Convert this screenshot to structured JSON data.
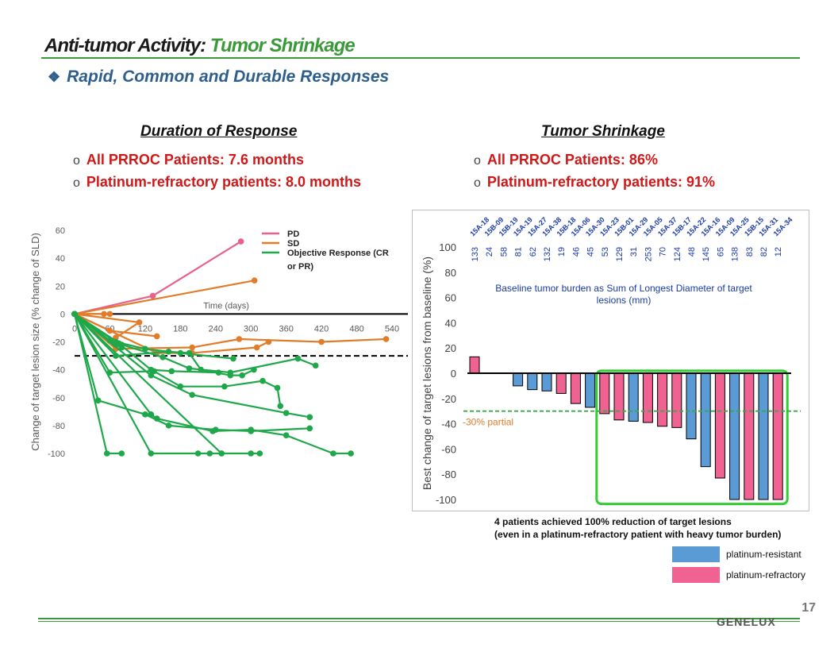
{
  "title": {
    "main": "Anti-tumor Activity: ",
    "accent": "Tumor Shrinkage"
  },
  "subtitle": "Rapid, Common and Durable Responses",
  "bullet_glyph": "❖",
  "circle_bullet": "o",
  "left_section": {
    "heading": "Duration of Response",
    "bullets": [
      "All PRROC Patients: 7.6 months",
      "Platinum-refractory patients: 8.0 months"
    ]
  },
  "right_section": {
    "heading": "Tumor Shrinkage",
    "bullets": [
      "All PRROC Patients: 86%",
      "Platinum-refractory patients: 91%"
    ]
  },
  "footnote": [
    "4 patients achieved 100% reduction of target lesions",
    "(even in a platinum-refractory patient with heavy tumor burden)"
  ],
  "page_number": "17",
  "logo_text": "GENELUX",
  "colors": {
    "pd": "#e8608e",
    "sd": "#e07c2a",
    "response": "#1ea84a",
    "resistant": "#5b9bd5",
    "refractory": "#f06292",
    "green_box": "#33cc33",
    "accent_green": "#3a9a3a",
    "title_blue": "#2e5e8c",
    "bullet_red": "#d01818"
  },
  "chart_data": [
    {
      "type": "line",
      "title": "",
      "xlabel": "Time (days)",
      "ylabel": "Change of target lesion size (% change of SLD)",
      "xlim": [
        0,
        540
      ],
      "ylim": [
        -100,
        60
      ],
      "xticks": [
        0,
        60,
        120,
        180,
        240,
        300,
        360,
        420,
        480,
        540
      ],
      "yticks": [
        60,
        40,
        20,
        0,
        -20,
        -40,
        -60,
        -80,
        -100
      ],
      "reference_line": -30,
      "legend": [
        "PD",
        "SD",
        "Objective Response (CR or PR)"
      ],
      "legend_position": "top-right",
      "series": [
        {
          "group": "PD",
          "points": [
            [
              0,
              0
            ],
            [
              133,
              13
            ],
            [
              283,
              52
            ]
          ]
        },
        {
          "group": "SD",
          "points": [
            [
              0,
              0
            ],
            [
              306,
              24
            ]
          ]
        },
        {
          "group": "SD",
          "points": [
            [
              0,
              0
            ],
            [
              110,
              -6
            ],
            [
              70,
              -17
            ]
          ]
        },
        {
          "group": "SD",
          "points": [
            [
              0,
              0
            ],
            [
              50,
              0
            ],
            [
              60,
              0
            ]
          ]
        },
        {
          "group": "SD",
          "points": [
            [
              0,
              0
            ],
            [
              60,
              -12
            ],
            [
              140,
              -16
            ]
          ]
        },
        {
          "group": "SD",
          "points": [
            [
              0,
              0
            ],
            [
              70,
              -25
            ],
            [
              200,
              -24
            ],
            [
              280,
              -18
            ],
            [
              420,
              -20
            ],
            [
              530,
              -18
            ]
          ]
        },
        {
          "group": "SD",
          "points": [
            [
              0,
              0
            ],
            [
              140,
              -28
            ],
            [
              200,
              -28
            ],
            [
              310,
              -24
            ],
            [
              330,
              -20
            ]
          ]
        },
        {
          "group": "Response",
          "points": [
            [
              0,
              0
            ],
            [
              60,
              -19
            ],
            [
              70,
              -22
            ],
            [
              80,
              -24
            ]
          ]
        },
        {
          "group": "Response",
          "points": [
            [
              0,
              0
            ],
            [
              70,
              -20
            ],
            [
              120,
              -25
            ],
            [
              180,
              -28
            ],
            [
              270,
              -32
            ]
          ]
        },
        {
          "group": "Response",
          "points": [
            [
              0,
              0
            ],
            [
              75,
              -21
            ],
            [
              130,
              -40
            ],
            [
              165,
              -41
            ],
            [
              245,
              -42
            ]
          ]
        },
        {
          "group": "Response",
          "points": [
            [
              0,
              0
            ],
            [
              70,
              -30
            ],
            [
              160,
              -27
            ],
            [
              195,
              -28
            ],
            [
              215,
              -40
            ],
            [
              265,
              -44
            ],
            [
              285,
              -44
            ],
            [
              305,
              -40
            ]
          ]
        },
        {
          "group": "Response",
          "points": [
            [
              0,
              0
            ],
            [
              60,
              -42
            ],
            [
              135,
              -41
            ],
            [
              180,
              -52
            ],
            [
              255,
              -52
            ],
            [
              320,
              -48
            ],
            [
              345,
              -53
            ],
            [
              350,
              -66
            ]
          ]
        },
        {
          "group": "Response",
          "points": [
            [
              0,
              0
            ],
            [
              80,
              -22
            ],
            [
              150,
              -31
            ],
            [
              195,
              -39
            ],
            [
              265,
              -42
            ],
            [
              380,
              -32
            ],
            [
              410,
              -37
            ]
          ]
        },
        {
          "group": "Response",
          "points": [
            [
              0,
              0
            ],
            [
              130,
              -44
            ],
            [
              200,
              -58
            ],
            [
              360,
              -71
            ],
            [
              400,
              -74
            ]
          ]
        },
        {
          "group": "Response",
          "points": [
            [
              0,
              0
            ],
            [
              40,
              -62
            ],
            [
              120,
              -72
            ],
            [
              160,
              -80
            ],
            [
              240,
              -83
            ],
            [
              300,
              -84
            ],
            [
              400,
              -82
            ]
          ]
        },
        {
          "group": "Response",
          "points": [
            [
              0,
              0
            ],
            [
              130,
              -72
            ],
            [
              140,
              -75
            ],
            [
              235,
              -84
            ],
            [
              300,
              -83
            ],
            [
              360,
              -87
            ],
            [
              440,
              -100
            ],
            [
              470,
              -100
            ]
          ]
        },
        {
          "group": "Response",
          "points": [
            [
              0,
              0
            ],
            [
              55,
              -100
            ],
            [
              80,
              -100
            ]
          ]
        },
        {
          "group": "Response",
          "points": [
            [
              0,
              0
            ],
            [
              130,
              -100
            ],
            [
              210,
              -100
            ],
            [
              230,
              -100
            ],
            [
              250,
              -100
            ]
          ]
        },
        {
          "group": "Response",
          "points": [
            [
              0,
              0
            ],
            [
              250,
              -100
            ],
            [
              300,
              -100
            ],
            [
              315,
              -100
            ]
          ]
        }
      ]
    },
    {
      "type": "bar",
      "title": "",
      "xlabel": "",
      "ylabel": "Best change of target lesions from baseline (%)",
      "ylim": [
        -100,
        100
      ],
      "yticks": [
        100,
        80,
        60,
        40,
        20,
        0,
        -20,
        -40,
        -60,
        -80,
        -100
      ],
      "reference_line": -30,
      "reference_label": "-30% partial",
      "baseline_caption": "Baseline tumor burden as Sum of Longest Diameter of target lesions (mm)",
      "categories": [
        "15A-18",
        "15B-09",
        "15B-19",
        "15A-19",
        "15A-27",
        "15A-38",
        "15B-18",
        "15A-06",
        "15A-30",
        "15A-23",
        "15B-01",
        "15A-29",
        "15A-05",
        "15A-37",
        "15B-17",
        "15A-22",
        "15A-16",
        "15A-09",
        "15A-25",
        "15B-15",
        "15A-31",
        "15A-34"
      ],
      "baseline_sld": [
        133,
        24,
        58,
        81,
        62,
        132,
        19,
        46,
        45,
        53,
        129,
        31,
        253,
        70,
        124,
        48,
        145,
        65,
        138,
        83,
        82,
        12
      ],
      "values": [
        13,
        null,
        null,
        -10,
        -13,
        -14,
        -16,
        -24,
        -27,
        -32,
        -37,
        -38,
        -39,
        -42,
        -43,
        -52,
        -74,
        -83,
        -100,
        -100,
        -100,
        -100
      ],
      "platinum_status": [
        "refractory",
        null,
        null,
        "resistant",
        "resistant",
        "resistant",
        "refractory",
        "refractory",
        "resistant",
        "refractory",
        "refractory",
        "resistant",
        "refractory",
        "refractory",
        "refractory",
        "resistant",
        "resistant",
        "refractory",
        "resistant",
        "refractory",
        "resistant",
        "refractory"
      ],
      "legend": [
        "platinum-resistant",
        "platinum-refractory"
      ],
      "legend_position": "bottom-right"
    }
  ]
}
